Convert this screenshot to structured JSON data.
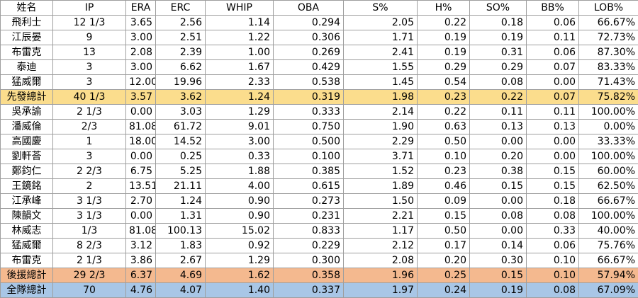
{
  "table": {
    "headers": [
      "姓名",
      "IP",
      "ERA",
      "ERC",
      "WHIP",
      "OBA",
      "S%",
      "H%",
      "SO%",
      "BB%",
      "LOB%"
    ],
    "rows": [
      {
        "name": "飛利士",
        "ip": "12 1/3",
        "era": "3.65",
        "erc": "2.56",
        "whip": "1.14",
        "oba": "0.294",
        "s": "2.05",
        "h": "0.22",
        "so": "0.18",
        "bb": "0.06",
        "lob": "66.67%",
        "highlight": "none"
      },
      {
        "name": "江辰晏",
        "ip": "9",
        "era": "3.00",
        "erc": "2.51",
        "whip": "1.22",
        "oba": "0.306",
        "s": "1.71",
        "h": "0.19",
        "so": "0.19",
        "bb": "0.11",
        "lob": "72.73%",
        "highlight": "none"
      },
      {
        "name": "布雷克",
        "ip": "13",
        "era": "2.08",
        "erc": "2.39",
        "whip": "1.00",
        "oba": "0.269",
        "s": "2.41",
        "h": "0.19",
        "so": "0.31",
        "bb": "0.06",
        "lob": "87.30%",
        "highlight": "none"
      },
      {
        "name": "泰迪",
        "ip": "3",
        "era": "3.00",
        "erc": "6.62",
        "whip": "1.67",
        "oba": "0.429",
        "s": "1.55",
        "h": "0.29",
        "so": "0.29",
        "bb": "0.07",
        "lob": "83.33%",
        "highlight": "none"
      },
      {
        "name": "猛威爾",
        "ip": "3",
        "era": "12.00",
        "erc": "19.96",
        "whip": "2.33",
        "oba": "0.538",
        "s": "1.45",
        "h": "0.54",
        "so": "0.08",
        "bb": "0.00",
        "lob": "71.43%",
        "highlight": "none"
      },
      {
        "name": "先發總計",
        "ip": "40 1/3",
        "era": "3.57",
        "erc": "3.62",
        "whip": "1.24",
        "oba": "0.319",
        "s": "1.98",
        "h": "0.23",
        "so": "0.22",
        "bb": "0.07",
        "lob": "75.82%",
        "highlight": "starter"
      },
      {
        "name": "吳承諭",
        "ip": "2 1/3",
        "era": "0.00",
        "erc": "3.03",
        "whip": "1.29",
        "oba": "0.333",
        "s": "2.14",
        "h": "0.22",
        "so": "0.11",
        "bb": "0.11",
        "lob": "100.00%",
        "highlight": "none"
      },
      {
        "name": "潘威倫",
        "ip": "2/3",
        "era": "81.08",
        "erc": "61.72",
        "whip": "9.01",
        "oba": "0.750",
        "s": "1.90",
        "h": "0.63",
        "so": "0.13",
        "bb": "0.13",
        "lob": "0.00%",
        "highlight": "none"
      },
      {
        "name": "高國慶",
        "ip": "1",
        "era": "18.00",
        "erc": "14.52",
        "whip": "3.00",
        "oba": "0.500",
        "s": "2.29",
        "h": "0.50",
        "so": "0.00",
        "bb": "0.00",
        "lob": "33.33%",
        "highlight": "none"
      },
      {
        "name": "劉軒荅",
        "ip": "3",
        "era": "0.00",
        "erc": "0.25",
        "whip": "0.33",
        "oba": "0.100",
        "s": "3.71",
        "h": "0.10",
        "so": "0.20",
        "bb": "0.00",
        "lob": "100.00%",
        "highlight": "none"
      },
      {
        "name": "鄭鈞仁",
        "ip": "2 2/3",
        "era": "6.75",
        "erc": "5.25",
        "whip": "1.88",
        "oba": "0.385",
        "s": "1.52",
        "h": "0.23",
        "so": "0.38",
        "bb": "0.15",
        "lob": "60.00%",
        "highlight": "none"
      },
      {
        "name": "王鏡銘",
        "ip": "2",
        "era": "13.51",
        "erc": "21.11",
        "whip": "4.00",
        "oba": "0.615",
        "s": "1.89",
        "h": "0.46",
        "so": "0.15",
        "bb": "0.15",
        "lob": "62.50%",
        "highlight": "none"
      },
      {
        "name": "江承峰",
        "ip": "3 1/3",
        "era": "2.70",
        "erc": "1.24",
        "whip": "0.90",
        "oba": "0.273",
        "s": "1.50",
        "h": "0.09",
        "so": "0.00",
        "bb": "0.18",
        "lob": "66.67%",
        "highlight": "none"
      },
      {
        "name": "陳韻文",
        "ip": "3 1/3",
        "era": "0.00",
        "erc": "1.31",
        "whip": "0.90",
        "oba": "0.231",
        "s": "2.21",
        "h": "0.15",
        "so": "0.08",
        "bb": "0.08",
        "lob": "100.00%",
        "highlight": "none"
      },
      {
        "name": "林威志",
        "ip": "1/3",
        "era": "81.08",
        "erc": "100.13",
        "whip": "15.02",
        "oba": "0.833",
        "s": "1.17",
        "h": "0.50",
        "so": "0.00",
        "bb": "0.33",
        "lob": "40.00%",
        "highlight": "none"
      },
      {
        "name": "猛威爾",
        "ip": "8 2/3",
        "era": "3.12",
        "erc": "1.83",
        "whip": "0.92",
        "oba": "0.229",
        "s": "2.12",
        "h": "0.17",
        "so": "0.14",
        "bb": "0.06",
        "lob": "75.76%",
        "highlight": "none"
      },
      {
        "name": "布雷克",
        "ip": "2 1/3",
        "era": "3.86",
        "erc": "2.67",
        "whip": "1.29",
        "oba": "0.300",
        "s": "2.08",
        "h": "0.20",
        "so": "0.30",
        "bb": "0.10",
        "lob": "66.67%",
        "highlight": "none"
      },
      {
        "name": "後援總計",
        "ip": "29 2/3",
        "era": "6.37",
        "erc": "4.69",
        "whip": "1.62",
        "oba": "0.358",
        "s": "1.96",
        "h": "0.25",
        "so": "0.15",
        "bb": "0.10",
        "lob": "57.94%",
        "highlight": "relief"
      },
      {
        "name": "全隊總計",
        "ip": "70",
        "era": "4.76",
        "erc": "4.07",
        "whip": "1.40",
        "oba": "0.337",
        "s": "1.97",
        "h": "0.24",
        "so": "0.19",
        "bb": "0.08",
        "lob": "67.09%",
        "highlight": "team"
      }
    ]
  },
  "colors": {
    "starter_row": "#fbdd8d",
    "relief_row": "#f4b98f",
    "team_row": "#a8c6e6",
    "grid": "#9e9e9e"
  }
}
